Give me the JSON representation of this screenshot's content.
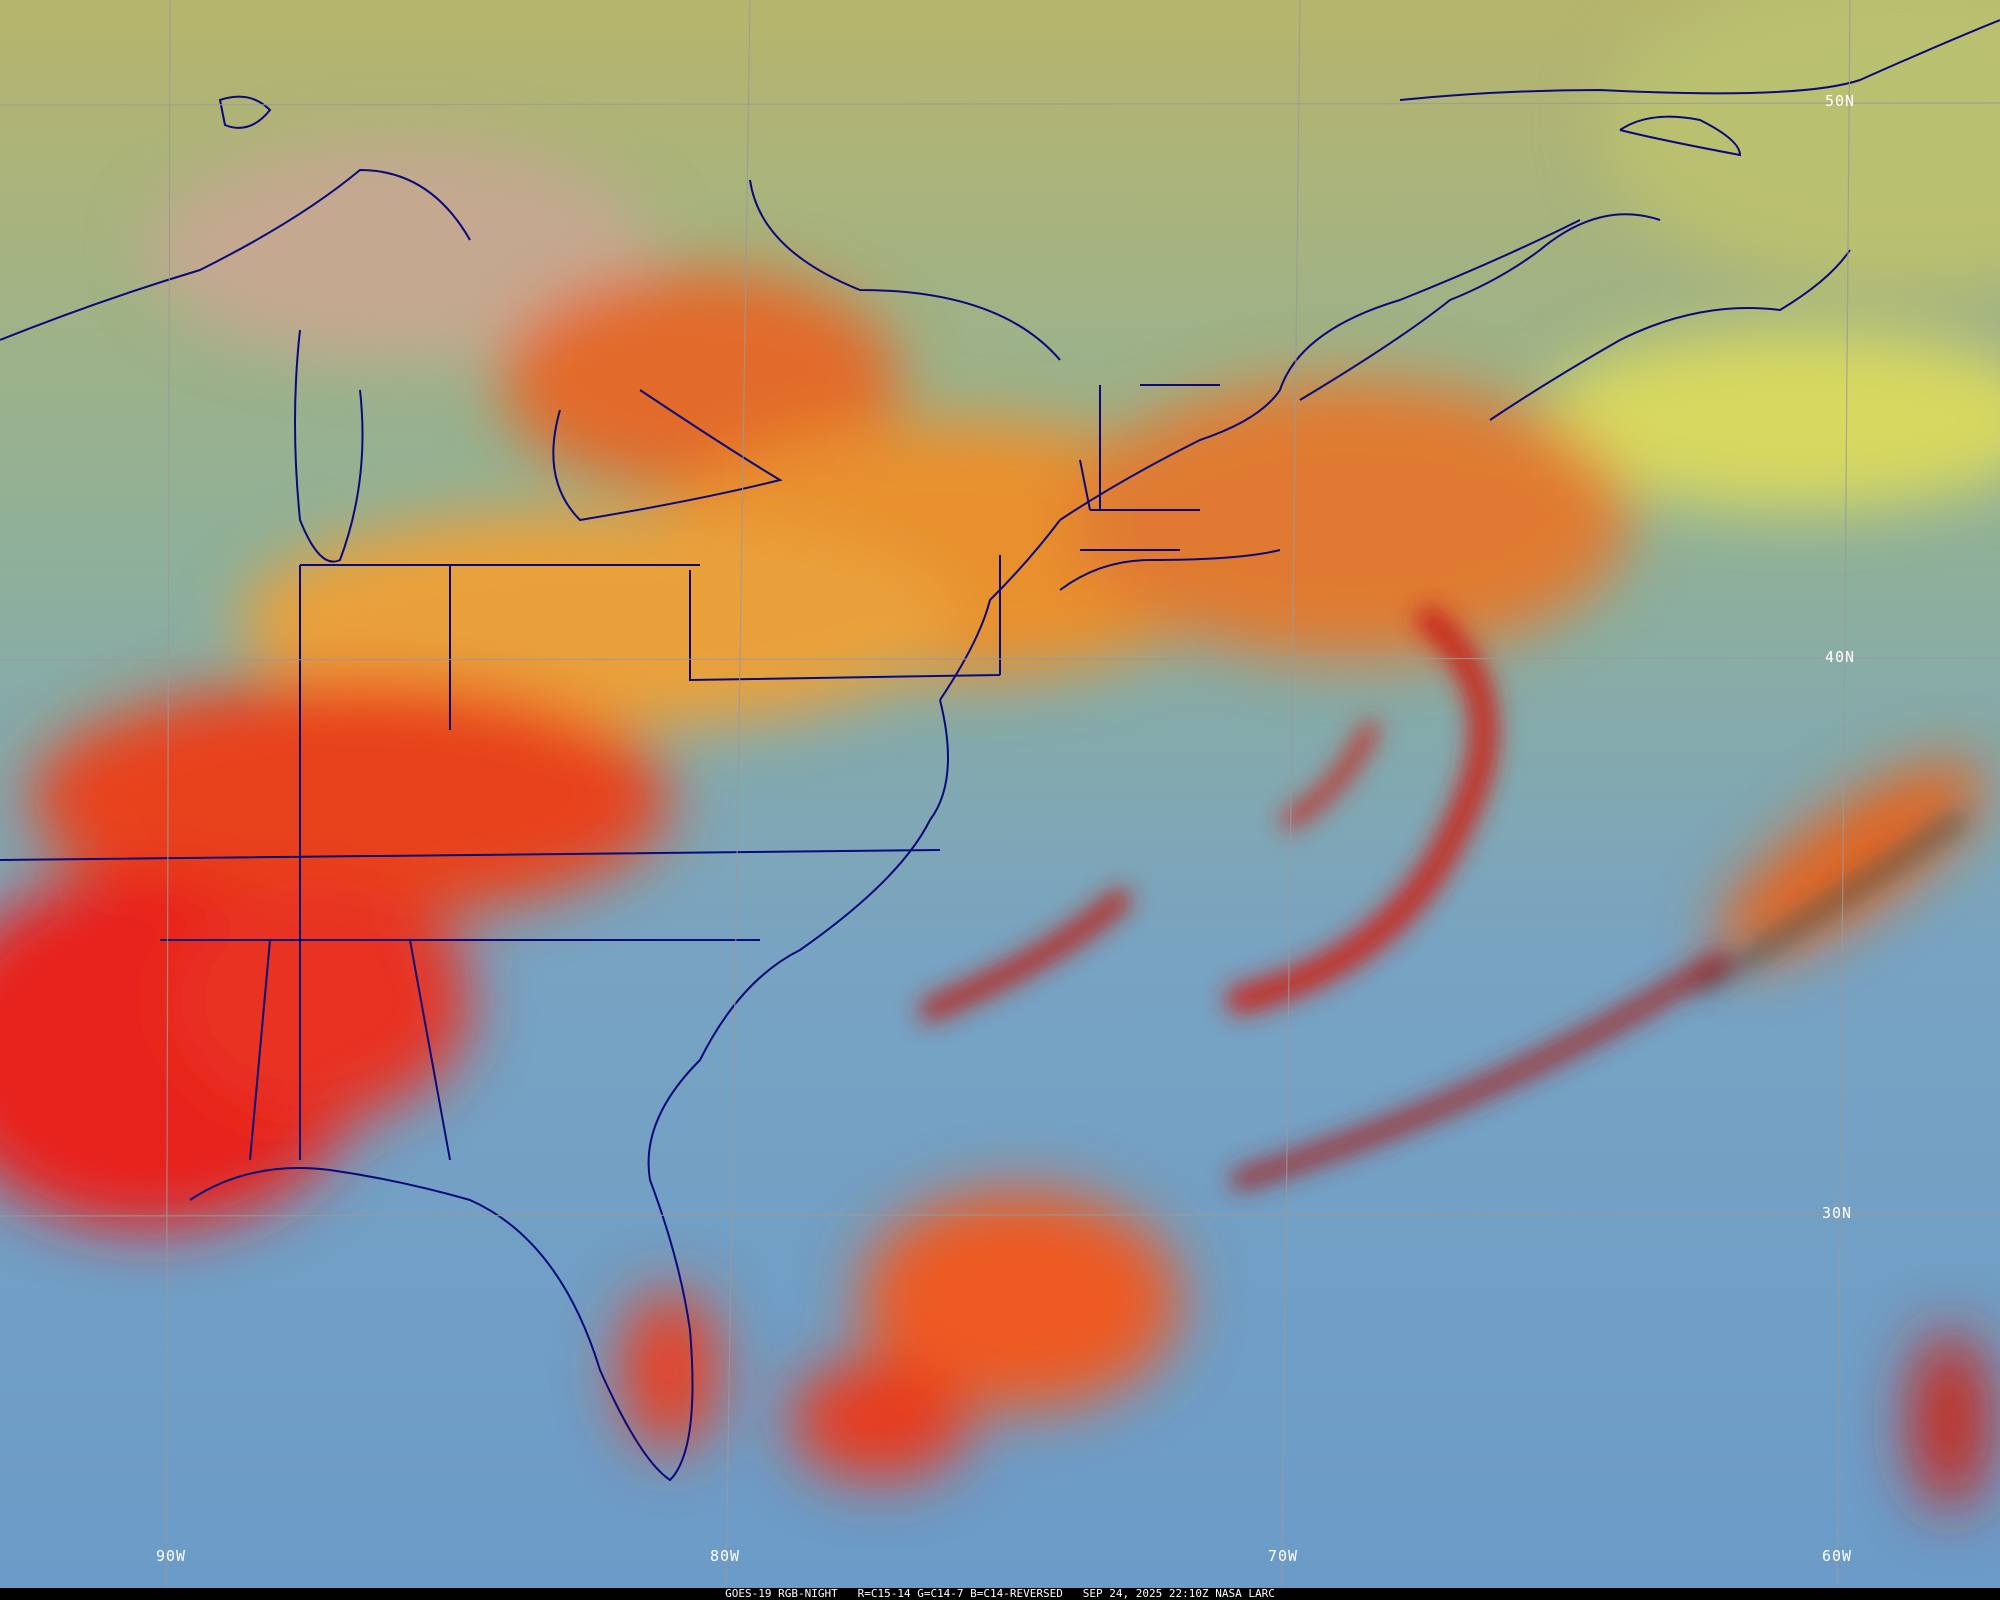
{
  "caption": {
    "satellite": "GOES-19 RGB-NIGHT",
    "channels": "R=C15-14 G=C14-7 B=C14-REVERSED",
    "datetime": "SEP 24, 2025 22:10Z",
    "credit": "NASA LARC"
  },
  "grid": {
    "latitudes": [
      "50N",
      "40N",
      "30N"
    ],
    "longitudes": [
      "90W",
      "80W",
      "70W",
      "60W"
    ]
  },
  "colors": {
    "ocean_clear": "#6f9fc6",
    "land_clear": "#8fb39a",
    "northern_clear": "#b9b66a",
    "cloud_high": "#e8241a",
    "cloud_mid": "#f08a2a",
    "cloud_thin": "#d9c84a",
    "boundaries": "#0a0a7a",
    "gridlines": "#9a9a9a"
  }
}
